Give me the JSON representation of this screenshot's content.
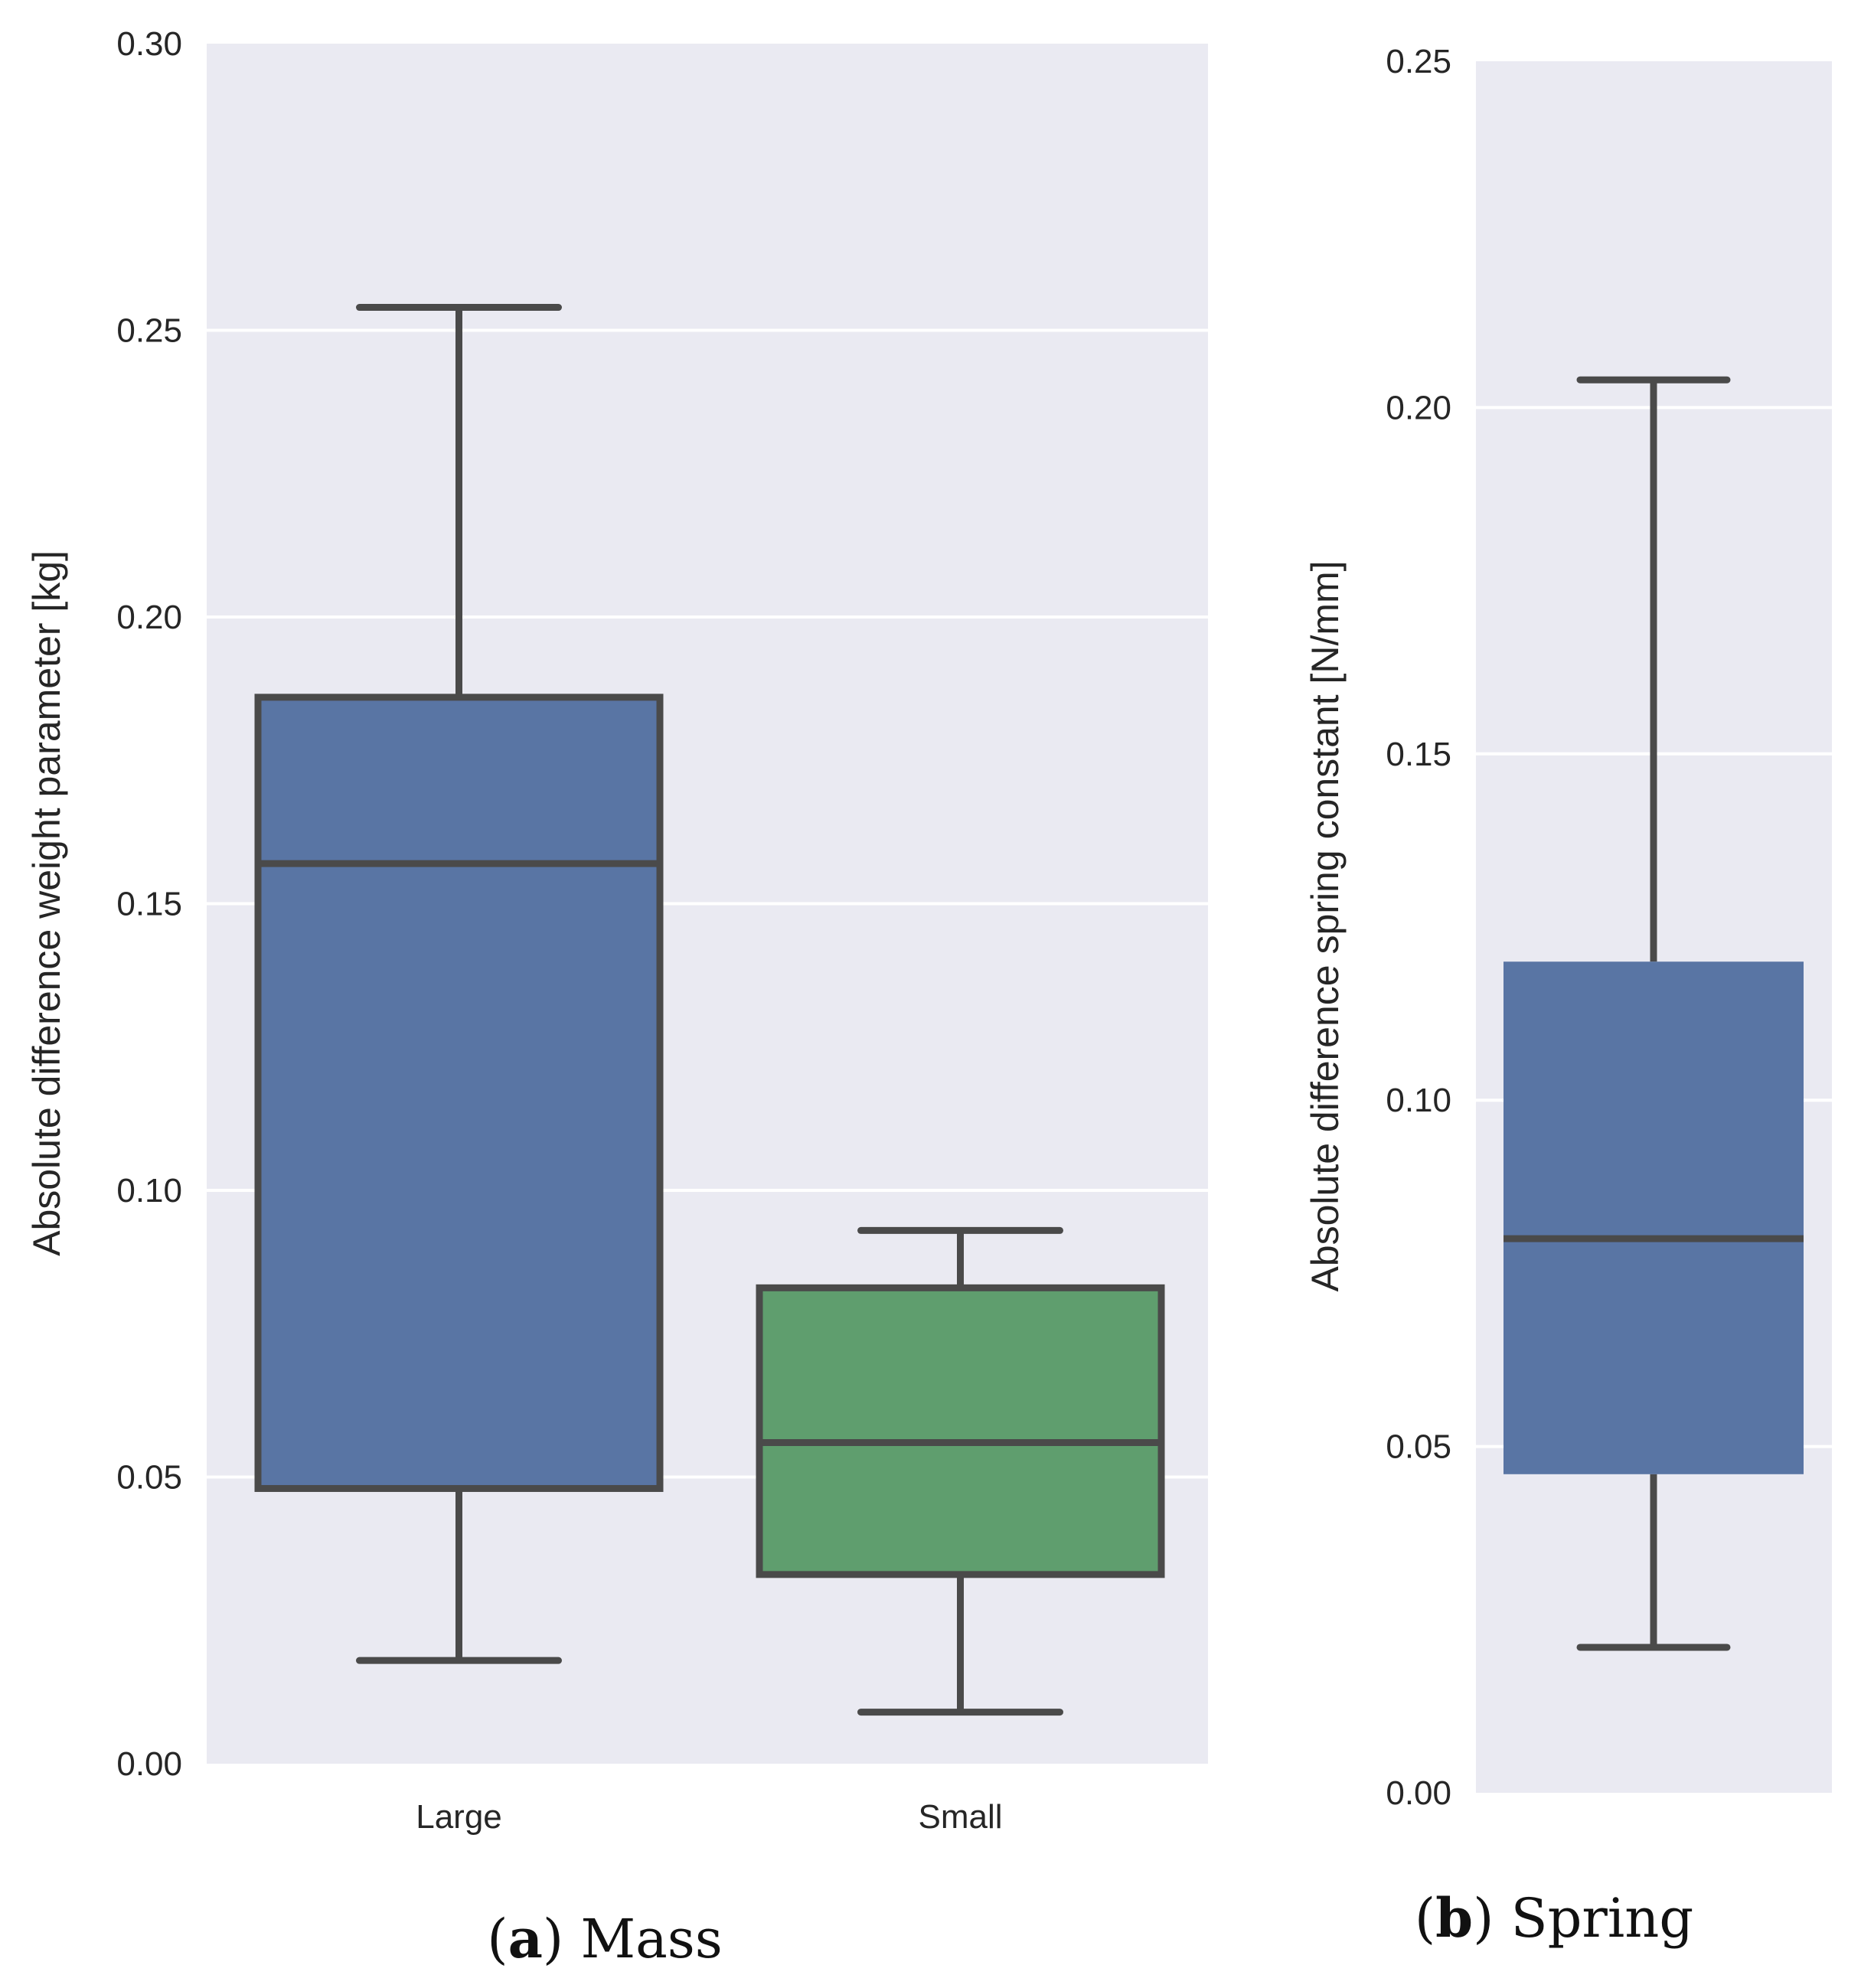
{
  "colors": {
    "panel_bg": "#eaeaf2",
    "grid": "#ffffff",
    "line": "#4a4a4a",
    "blue": "#5975a4",
    "green": "#5f9e6e"
  },
  "chart_data": [
    {
      "type": "box",
      "id": "mass",
      "caption": {
        "letter": "a",
        "open": "(",
        "close": ")",
        "text": " Mass"
      },
      "ylabel": "Absolute difference weight parameter [kg]",
      "ylim": [
        0,
        0.3
      ],
      "yticks": [
        0.0,
        0.05,
        0.1,
        0.15,
        0.2,
        0.25,
        0.3
      ],
      "ytick_labels": [
        "0.00",
        "0.05",
        "0.10",
        "0.15",
        "0.20",
        "0.25",
        "0.30"
      ],
      "grid": true,
      "categories": [
        "Large",
        "Small"
      ],
      "boxes": [
        {
          "category": "Large",
          "color": "#5975a4",
          "whislo": 0.018,
          "q1": 0.048,
          "med": 0.157,
          "q3": 0.186,
          "whishi": 0.254
        },
        {
          "category": "Small",
          "color": "#5f9e6e",
          "whislo": 0.009,
          "q1": 0.033,
          "med": 0.056,
          "q3": 0.083,
          "whishi": 0.093
        }
      ]
    },
    {
      "type": "box",
      "id": "spring",
      "caption": {
        "letter": "b",
        "open": "(",
        "close": ")",
        "text": " Spring"
      },
      "ylabel": "Absolute difference spring constant [N/mm]",
      "ylim": [
        0,
        0.25
      ],
      "yticks": [
        0.0,
        0.05,
        0.1,
        0.15,
        0.2,
        0.25
      ],
      "ytick_labels": [
        "0.00",
        "0.05",
        "0.10",
        "0.15",
        "0.20",
        "0.25"
      ],
      "grid": true,
      "categories": [],
      "boxes": [
        {
          "category": "",
          "color": "#5975a4",
          "whislo": 0.021,
          "q1": 0.046,
          "med": 0.08,
          "q3": 0.12,
          "whishi": 0.204
        }
      ]
    }
  ]
}
